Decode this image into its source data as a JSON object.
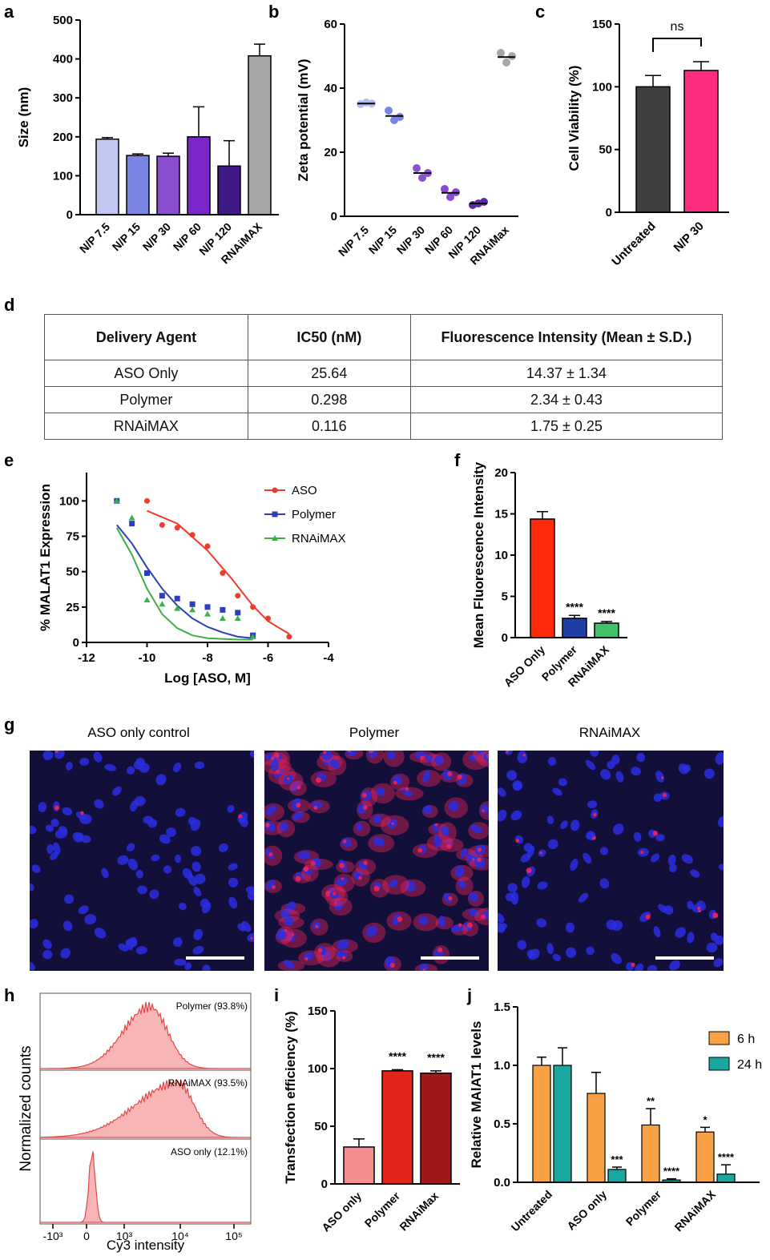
{
  "panels": {
    "a": "a",
    "b": "b",
    "c": "c",
    "d": "d",
    "e": "e",
    "f": "f",
    "g": "g",
    "h": "h",
    "i": "i",
    "j": "j"
  },
  "table": {
    "headers": [
      "Delivery Agent",
      "IC50 (nM)",
      "Fluorescence Intensity (Mean ± S.D.)"
    ],
    "rows": [
      [
        "ASO Only",
        "25.64",
        "14.37 ± 1.34"
      ],
      [
        "Polymer",
        "0.298",
        "2.34 ± 0.43"
      ],
      [
        "RNAiMAX",
        "0.116",
        "1.75 ± 0.25"
      ]
    ]
  },
  "images": {
    "titles": [
      "ASO only control",
      "Polymer",
      "RNAiMAX"
    ],
    "colors": {
      "background": "#120f3a",
      "nuclei": "#2a2ee0",
      "cy3": "#e0245a"
    }
  },
  "chart_data": [
    {
      "panel": "a",
      "type": "bar",
      "categories": [
        "N/P 7.5",
        "N/P 15",
        "N/P 30",
        "N/P 60",
        "N/P 120",
        "RNAiMAX"
      ],
      "values": [
        194,
        152,
        150,
        200,
        125,
        408
      ],
      "errors": [
        4,
        4,
        8,
        77,
        65,
        30
      ],
      "colors": [
        "#c3c8f2",
        "#7b84e2",
        "#8a4fd0",
        "#7a26c8",
        "#3f1a86",
        "#a6a6a6"
      ],
      "ylabel": "Size (nm)",
      "ylim": [
        0,
        500
      ],
      "yticks": [
        0,
        100,
        200,
        300,
        400,
        500
      ]
    },
    {
      "panel": "b",
      "type": "scatter",
      "categories": [
        "N/P 7.5",
        "N/P 15",
        "N/P 30",
        "N/P 60",
        "N/P 120",
        "RNAiMax"
      ],
      "points": [
        [
          35,
          35.5,
          35.2
        ],
        [
          33,
          30,
          31
        ],
        [
          15,
          12,
          13.5
        ],
        [
          8.5,
          6,
          7.5
        ],
        [
          3.5,
          4,
          4.5
        ],
        [
          51,
          48,
          50
        ]
      ],
      "means": [
        35.2,
        31.3,
        13.5,
        7.3,
        4.0,
        49.7
      ],
      "colors": [
        "#b4baf2",
        "#7a84e4",
        "#8a52d2",
        "#8a4ad0",
        "#5b2aa8",
        "#a6a6a6"
      ],
      "ylabel": "Zeta potential (mV)",
      "ylim": [
        0,
        60
      ],
      "yticks": [
        0,
        20,
        40,
        60
      ]
    },
    {
      "panel": "c",
      "type": "bar",
      "categories": [
        "Untreated",
        "N/P 30"
      ],
      "values": [
        100,
        113
      ],
      "errors": [
        9,
        7
      ],
      "colors": [
        "#3f3f3f",
        "#ff2d80"
      ],
      "ylabel": "Cell Viability (%)",
      "ylim": [
        0,
        150
      ],
      "yticks": [
        0,
        50,
        100,
        150
      ],
      "annotations": [
        "ns"
      ]
    },
    {
      "panel": "e",
      "type": "line",
      "xlabel": "Log [ASO, M]",
      "ylabel": "% MALAT1 Expression",
      "xlim": [
        -12,
        -4
      ],
      "ylim": [
        0,
        120
      ],
      "xticks": [
        -12,
        -10,
        -8,
        -6,
        -4
      ],
      "yticks": [
        0,
        25,
        50,
        75,
        100
      ],
      "series": [
        {
          "name": "ASO",
          "color": "#ee3b2b",
          "marker": "circle",
          "x": [
            -10,
            -9.5,
            -9,
            -8.5,
            -8,
            -7.5,
            -7,
            -6.5,
            -6,
            -5.3
          ],
          "y": [
            100,
            83,
            81,
            76,
            68,
            49,
            33,
            25,
            17,
            4
          ],
          "fit": [
            [
              -10,
              93
            ],
            [
              -9,
              84
            ],
            [
              -8,
              65
            ],
            [
              -7.2,
              45
            ],
            [
              -6.5,
              26
            ],
            [
              -6,
              15
            ],
            [
              -5.3,
              6
            ]
          ]
        },
        {
          "name": "Polymer",
          "color": "#2b3fb8",
          "marker": "square",
          "x": [
            -11,
            -10.5,
            -10,
            -9.5,
            -9,
            -8.5,
            -8,
            -7.5,
            -7,
            -6.5
          ],
          "y": [
            100,
            84,
            49,
            33,
            31,
            27,
            25,
            23,
            21,
            5
          ],
          "fit": [
            [
              -11,
              83
            ],
            [
              -10.5,
              70
            ],
            [
              -10,
              53
            ],
            [
              -9.5,
              38
            ],
            [
              -9,
              26
            ],
            [
              -8.5,
              17
            ],
            [
              -8,
              11
            ],
            [
              -7.5,
              7
            ],
            [
              -7,
              4
            ],
            [
              -6.5,
              3
            ]
          ]
        },
        {
          "name": "RNAiMAX",
          "color": "#3cb043",
          "marker": "triangle",
          "x": [
            -11,
            -10.5,
            -10,
            -9.5,
            -9,
            -8.5,
            -8,
            -7.5,
            -7,
            -6.5
          ],
          "y": [
            100,
            88,
            30,
            27,
            24,
            23,
            20,
            17,
            17,
            4
          ],
          "fit": [
            [
              -11,
              81
            ],
            [
              -10.5,
              62
            ],
            [
              -10,
              38
            ],
            [
              -9.5,
              20
            ],
            [
              -9,
              10
            ],
            [
              -8.5,
              5
            ],
            [
              -8,
              3
            ],
            [
              -7,
              2
            ],
            [
              -6.5,
              2
            ]
          ]
        }
      ]
    },
    {
      "panel": "f",
      "type": "bar",
      "categories": [
        "ASO Only",
        "Polymer",
        "RNAiMAX"
      ],
      "values": [
        14.37,
        2.34,
        1.75
      ],
      "errors": [
        0.9,
        0.35,
        0.2
      ],
      "colors": [
        "#ff2a0a",
        "#1f3fa6",
        "#43c06a"
      ],
      "ylabel": "Mean Fluorescence Intensity",
      "ylim": [
        0,
        20
      ],
      "yticks": [
        0,
        5,
        10,
        15,
        20
      ],
      "annotations": [
        "",
        "****",
        "****"
      ]
    },
    {
      "panel": "h",
      "type": "area",
      "xlabel": "Cy3 intensity",
      "ylabel": "Normalized counts",
      "xticks": [
        "-10³",
        "0",
        "10³",
        "10⁴",
        "10⁵"
      ],
      "series": [
        {
          "name": "Polymer (93.8%)"
        },
        {
          "name": "RNAiMAX (93.5%)"
        },
        {
          "name": "ASO only (12.1%)"
        }
      ],
      "color": "#f07a78"
    },
    {
      "panel": "i",
      "type": "bar",
      "categories": [
        "ASO only",
        "Polymer",
        "RNAiMax"
      ],
      "values": [
        32,
        98,
        96
      ],
      "errors": [
        7,
        1,
        2
      ],
      "colors": [
        "#f28e8e",
        "#e3261c",
        "#a01818"
      ],
      "ylabel": "Transfection efficiency (%)",
      "ylim": [
        0,
        150
      ],
      "yticks": [
        0,
        50,
        100,
        150
      ],
      "annotations": [
        "",
        "****",
        "****"
      ]
    },
    {
      "panel": "j",
      "type": "bar",
      "categories": [
        "Untreated",
        "ASO only",
        "Polymer",
        "RNAiMAX"
      ],
      "series": [
        {
          "name": "6 h",
          "color": "#f7a044",
          "values": [
            1.0,
            0.76,
            0.49,
            0.43
          ],
          "errors": [
            0.07,
            0.18,
            0.14,
            0.04
          ],
          "annotations": [
            "",
            "",
            "**",
            "*"
          ]
        },
        {
          "name": "24 h",
          "color": "#1aa7a0",
          "values": [
            1.0,
            0.11,
            0.02,
            0.07
          ],
          "errors": [
            0.15,
            0.02,
            0.01,
            0.08
          ],
          "annotations": [
            "",
            "***",
            "****",
            "****"
          ]
        }
      ],
      "ylabel": "Relative MAlAT1 levels",
      "ylim": [
        0,
        1.5
      ],
      "yticks": [
        0.0,
        0.5,
        1.0,
        1.5
      ]
    }
  ]
}
